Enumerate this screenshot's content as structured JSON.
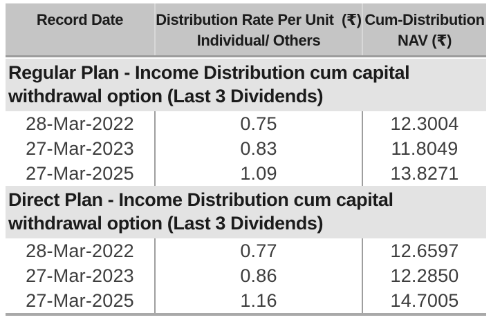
{
  "header": {
    "record_date": "Record Date",
    "distribution_rate_line1": "Distribution Rate Per Unit  (₹)",
    "distribution_rate_line2": "Individual/ Others",
    "cum_distribution_line1": "Cum-Distribution",
    "cum_distribution_line2": "NAV (₹)"
  },
  "sections": [
    {
      "title": "Regular Plan - Income Distribution cum capital withdrawal option (Last 3 Dividends)",
      "rows": [
        {
          "record_date": "28-Mar-2022",
          "rate": "0.75",
          "nav": "12.3004"
        },
        {
          "record_date": "27-Mar-2023",
          "rate": "0.83",
          "nav": "11.8049"
        },
        {
          "record_date": "27-Mar-2025",
          "rate": "1.09",
          "nav": "13.8271"
        }
      ]
    },
    {
      "title": "Direct Plan - Income Distribution cum capital withdrawal option (Last 3 Dividends)",
      "rows": [
        {
          "record_date": "28-Mar-2022",
          "rate": "0.77",
          "nav": "12.6597"
        },
        {
          "record_date": "27-Mar-2023",
          "rate": "0.86",
          "nav": "12.2850"
        },
        {
          "record_date": "27-Mar-2025",
          "rate": "1.16",
          "nav": "14.7005"
        }
      ]
    }
  ],
  "colors": {
    "header_bg": "#c5c5c5",
    "section_bg": "#e3e3e3",
    "data_divider": "#9e9e9e",
    "header_divider": "#d8d8d8",
    "header_bottom_edge": "#9c9c9c",
    "table_bottom_border": "#a9a9a9",
    "heading_text": "#1b1b1b",
    "data_text": "#3d3d3d"
  }
}
